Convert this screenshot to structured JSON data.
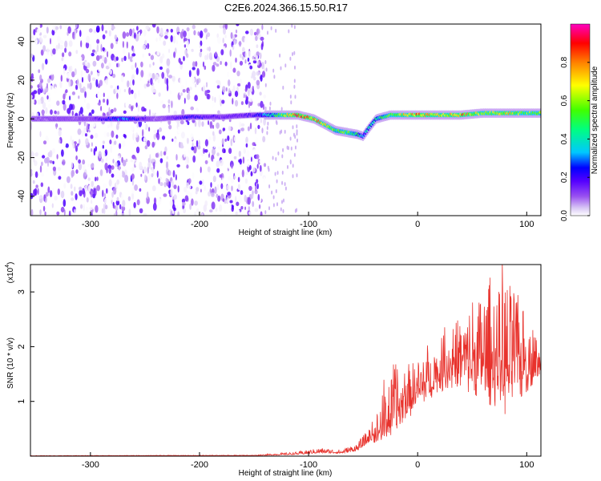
{
  "title": "C2E6.2024.366.15.50.R17",
  "chart_data": [
    {
      "type": "heatmap",
      "xlabel": "Height of straight line (km)",
      "ylabel": "Frequency (Hz)",
      "xlim": [
        -355,
        113
      ],
      "ylim": [
        -50,
        49
      ],
      "x_ticks": [
        -300,
        -200,
        -100,
        0,
        100
      ],
      "y_ticks": [
        -40,
        -20,
        0,
        20,
        40
      ],
      "colorbar": {
        "label": "Normalized spectral amplitude",
        "range": [
          0.0,
          1.0
        ],
        "ticks": [
          0.0,
          0.2,
          0.4,
          0.6,
          0.8
        ],
        "colormap": [
          "#ffffff",
          "#d9c7f5",
          "#9a52f0",
          "#5500ff",
          "#0000ff",
          "#00c8ff",
          "#00ff80",
          "#40ff00",
          "#ffff00",
          "#ff8000",
          "#ff0000",
          "#ff00c0"
        ]
      },
      "ridge": {
        "x": [
          -345,
          -300,
          -270,
          -240,
          -210,
          -180,
          -150,
          -125,
          -110,
          -95,
          -85,
          -75,
          -65,
          -55,
          -50,
          -45,
          -38,
          -25,
          -10,
          0,
          20,
          40,
          60,
          80,
          100,
          113
        ],
        "y": [
          0,
          0,
          0,
          0,
          1,
          1,
          2,
          2,
          2,
          0,
          -3,
          -6,
          -7,
          -8,
          -9,
          -5,
          0,
          2,
          2,
          2,
          2,
          2,
          3,
          3,
          3,
          3
        ],
        "amp": [
          0.1,
          0.12,
          0.35,
          0.08,
          0.25,
          0.15,
          0.2,
          0.6,
          0.9,
          0.8,
          0.7,
          0.55,
          0.6,
          0.5,
          0.3,
          0.4,
          0.45,
          0.6,
          0.7,
          0.85,
          0.7,
          0.8,
          0.65,
          0.75,
          0.6,
          0.6
        ]
      },
      "noise_region_x": [
        -355,
        -140
      ],
      "grid": false
    },
    {
      "type": "line",
      "xlabel": "Height of straight line (km)",
      "ylabel": "SNR (10 * v/v)",
      "y_scale_label": "(x10",
      "y_scale_exp": "4",
      "xlim": [
        -355,
        113
      ],
      "ylim": [
        0,
        3.5
      ],
      "x_ticks": [
        -300,
        -200,
        -100,
        0,
        100
      ],
      "y_ticks": [
        1,
        2,
        3
      ],
      "color": "#e8322c",
      "envelope": {
        "x": [
          -355,
          -150,
          -110,
          -90,
          -70,
          -55,
          -45,
          -38,
          -30,
          -20,
          -10,
          0,
          20,
          40,
          60,
          80,
          100,
          113
        ],
        "base": [
          0.005,
          0.01,
          0.03,
          0.06,
          0.05,
          0.1,
          0.25,
          0.35,
          0.5,
          0.7,
          0.9,
          1.1,
          1.4,
          1.6,
          1.5,
          1.4,
          1.5,
          1.6
        ],
        "peak": [
          0.01,
          0.02,
          0.08,
          0.15,
          0.12,
          0.25,
          0.5,
          0.8,
          1.4,
          1.6,
          1.7,
          1.8,
          2.2,
          2.6,
          3.0,
          3.4,
          2.6,
          2.0
        ]
      },
      "grid": false
    }
  ]
}
